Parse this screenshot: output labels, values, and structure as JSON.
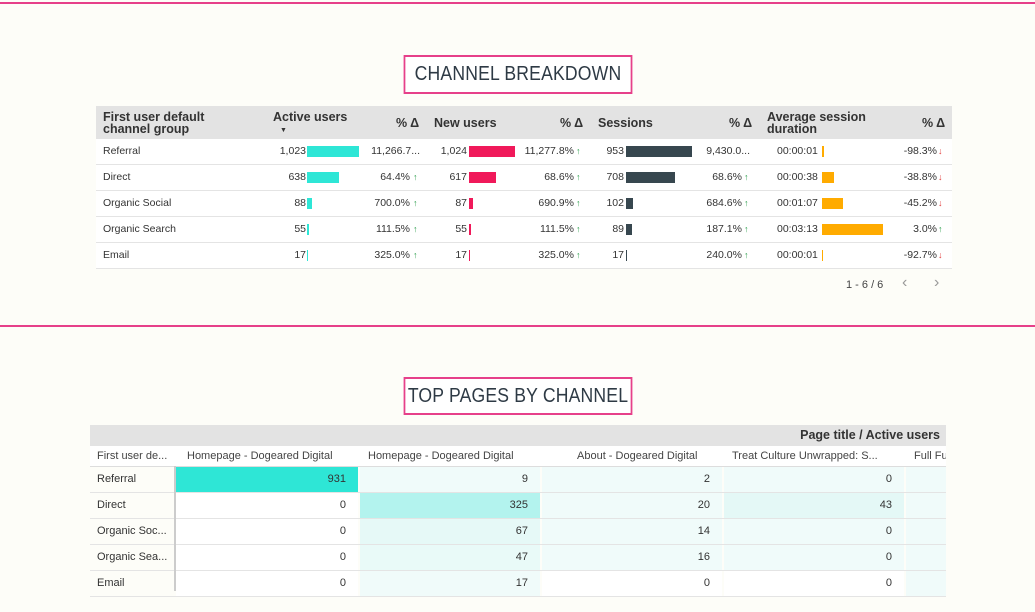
{
  "colors": {
    "accent": "#e6408a",
    "active": "#2ee6d6",
    "new": "#f0195a",
    "sessions": "#37474f",
    "duration": "#ffab00",
    "up": "#2a9d4a",
    "down": "#e23b3b"
  },
  "channel_breakdown": {
    "title": "CHANNEL BREAKDOWN",
    "headers": {
      "group_line1": "First user default",
      "group_line2": "channel group",
      "active": "Active users",
      "sort_icon": "▼",
      "pct1": "% Δ",
      "new": "New users",
      "pct2": "% Δ",
      "sessions": "Sessions",
      "pct3": "% Δ",
      "dur_line1": "Average session",
      "dur_line2": "duration",
      "pct4": "% Δ"
    },
    "rows": [
      {
        "group": "Referral",
        "active": "1,023",
        "active_pct": "11,266.7...",
        "active_trend": "",
        "new": "1,024",
        "new_pct": "11,277.8%",
        "new_trend": "↑",
        "sessions": "953",
        "sessions_pct": "9,430.0...",
        "sessions_trend": "",
        "duration": "00:00:01",
        "dur_pct": "-98.3%",
        "dur_trend": "↓"
      },
      {
        "group": "Direct",
        "active": "638",
        "active_pct": "64.4%",
        "active_trend": "↑",
        "new": "617",
        "new_pct": "68.6%",
        "new_trend": "↑",
        "sessions": "708",
        "sessions_pct": "68.6%",
        "sessions_trend": "↑",
        "duration": "00:00:38",
        "dur_pct": "-38.8%",
        "dur_trend": "↓"
      },
      {
        "group": "Organic Social",
        "active": "88",
        "active_pct": "700.0%",
        "active_trend": "↑",
        "new": "87",
        "new_pct": "690.9%",
        "new_trend": "↑",
        "sessions": "102",
        "sessions_pct": "684.6%",
        "sessions_trend": "↑",
        "duration": "00:01:07",
        "dur_pct": "-45.2%",
        "dur_trend": "↓"
      },
      {
        "group": "Organic Search",
        "active": "55",
        "active_pct": "111.5%",
        "active_trend": "↑",
        "new": "55",
        "new_pct": "111.5%",
        "new_trend": "↑",
        "sessions": "89",
        "sessions_pct": "187.1%",
        "sessions_trend": "↑",
        "duration": "00:03:13",
        "dur_pct": "3.0%",
        "dur_trend": "↑"
      },
      {
        "group": "Email",
        "active": "17",
        "active_pct": "325.0%",
        "active_trend": "↑",
        "new": "17",
        "new_pct": "325.0%",
        "new_trend": "↑",
        "sessions": "17",
        "sessions_pct": "240.0%",
        "sessions_trend": "↑",
        "duration": "00:00:01",
        "dur_pct": "-92.7%",
        "dur_trend": "↓"
      }
    ],
    "pager": {
      "label": "1 - 6 / 6",
      "prev_icon": "‹",
      "next_icon": "›"
    }
  },
  "top_pages": {
    "title": "TOP PAGES BY CHANNEL",
    "pivot_label": "Page title / Active users",
    "row_header": "First user de...",
    "columns": [
      "Homepage - Dogeared Digital",
      "Homepage - Dogeared Digital",
      "About - Dogeared Digital",
      "Treat Culture Unwrapped: S...",
      "Full Fu"
    ],
    "rows": [
      {
        "group": "Referral",
        "values": [
          "931",
          "9",
          "2",
          "0"
        ]
      },
      {
        "group": "Direct",
        "values": [
          "0",
          "325",
          "20",
          "43"
        ]
      },
      {
        "group": "Organic Soc...",
        "values": [
          "0",
          "67",
          "14",
          "0"
        ]
      },
      {
        "group": "Organic Sea...",
        "values": [
          "0",
          "47",
          "16",
          "0"
        ]
      },
      {
        "group": "Email",
        "values": [
          "0",
          "17",
          "0",
          "0"
        ]
      }
    ]
  }
}
